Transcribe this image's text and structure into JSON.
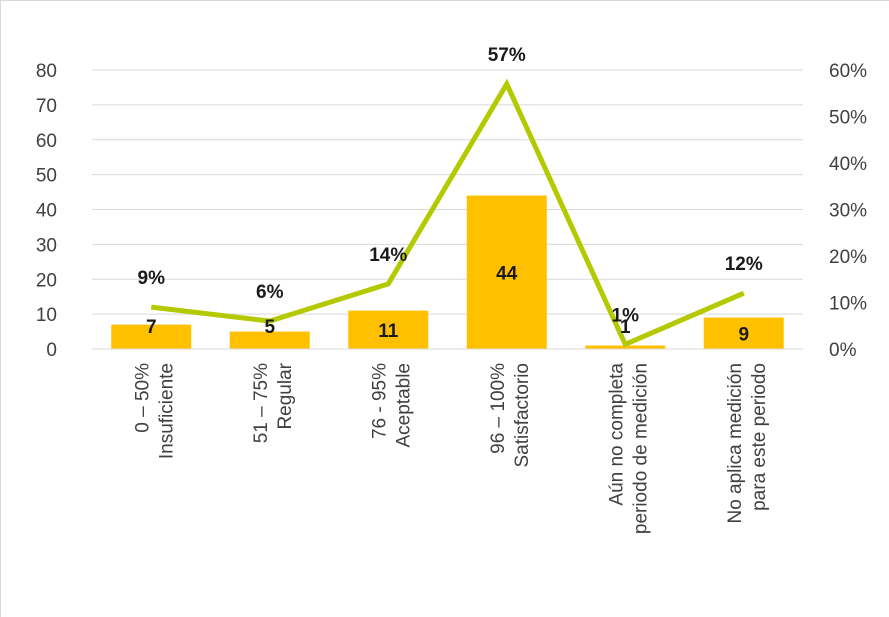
{
  "chart_data": {
    "type": "bar",
    "categories": [
      [
        "0 – 50%",
        "Insuficiente"
      ],
      [
        "51 – 75%",
        "Regular"
      ],
      [
        "76 - 95%",
        "Aceptable"
      ],
      [
        "96 – 100%",
        "Satisfactorio"
      ],
      [
        "Aún no completa",
        "periodo de medición"
      ],
      [
        "No aplica medición",
        "para este periodo"
      ]
    ],
    "series": [
      {
        "type": "bar",
        "axis": "left",
        "values": [
          7,
          5,
          11,
          44,
          1,
          9
        ],
        "labels": [
          "7",
          "5",
          "11",
          "44",
          "1",
          "9"
        ],
        "color": "#ffc000"
      },
      {
        "type": "line",
        "axis": "right",
        "values": [
          0.09,
          0.06,
          0.14,
          0.57,
          0.01,
          0.12
        ],
        "labels": [
          "9%",
          "6%",
          "14%",
          "57%",
          "1%",
          "12%"
        ],
        "color": "#b5c900"
      }
    ],
    "y_left": {
      "min": 0,
      "max": 80,
      "step": 10,
      "ticks": [
        "0",
        "10",
        "20",
        "30",
        "40",
        "50",
        "60",
        "70",
        "80"
      ]
    },
    "y_right": {
      "min": 0,
      "max": 0.6,
      "step": 0.1,
      "ticks": [
        "0%",
        "10%",
        "20%",
        "30%",
        "40%",
        "50%",
        "60%"
      ]
    },
    "grid": true,
    "legend": "none"
  }
}
